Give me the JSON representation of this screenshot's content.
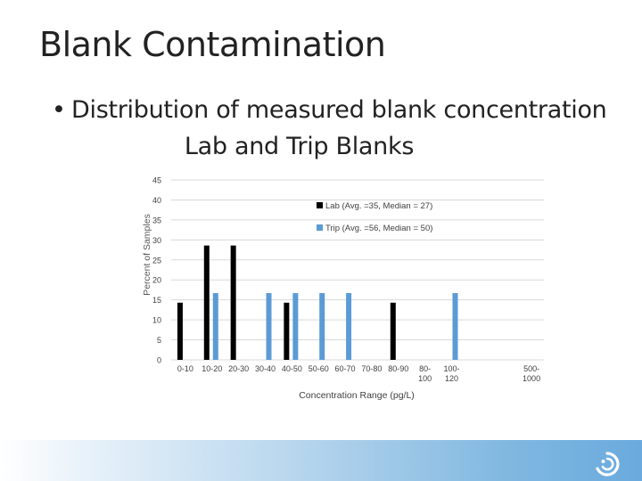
{
  "slide": {
    "title": "Blank Contamination",
    "bullet_line1": "Distribution of measured blank concentration",
    "bullet_line2": "Lab and Trip Blanks",
    "bullet_glyph": "•"
  },
  "colors": {
    "lab": "#000000",
    "trip": "#5b9bd5",
    "grid": "#d9d9d9",
    "footer_gradient_end": "#6aaade"
  },
  "icons": {
    "logo": "swirl-logo-icon"
  },
  "chart_data": {
    "type": "bar",
    "title": "",
    "xlabel": "Concentration Range (pg/L)",
    "ylabel": "Percent of Samples",
    "ylim": [
      0,
      45
    ],
    "yticks": [
      0,
      5,
      10,
      15,
      20,
      25,
      30,
      35,
      40,
      45
    ],
    "grid": true,
    "legend_position": "top-right",
    "categories": [
      [
        "0-10"
      ],
      [
        "10-20"
      ],
      [
        "20-30"
      ],
      [
        "30-40"
      ],
      [
        "40-50"
      ],
      [
        "50-60"
      ],
      [
        "60-70"
      ],
      [
        "70-80"
      ],
      [
        "80-90"
      ],
      [
        "80-",
        "100"
      ],
      [
        "100-",
        "120"
      ],
      [],
      [],
      [
        "500-",
        "1000"
      ]
    ],
    "series": [
      {
        "name": "Lab (Avg. =35, Median = 27)",
        "values": [
          14.3,
          28.6,
          28.6,
          0,
          14.3,
          0,
          0,
          0,
          14.3,
          0,
          0,
          0,
          0,
          0
        ]
      },
      {
        "name": "Trip (Avg. =56, Median = 50)",
        "values": [
          0,
          16.7,
          0,
          16.7,
          16.7,
          16.7,
          16.7,
          0,
          0,
          0,
          16.7,
          0,
          0,
          0
        ]
      }
    ]
  }
}
